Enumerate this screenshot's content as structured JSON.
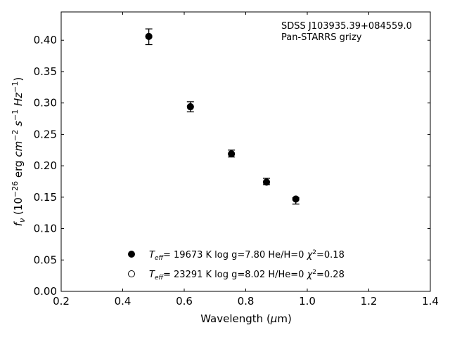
{
  "chart_data": {
    "type": "scatter",
    "xlabel": "Wavelength (μm)",
    "ylabel": "fν (10⁻²⁶ erg cm⁻² s⁻¹ Hz⁻¹)",
    "xlim": [
      0.2,
      1.4
    ],
    "ylim": [
      0.0,
      0.445
    ],
    "xticks": [
      "0.2",
      "0.4",
      "0.6",
      "0.8",
      "1.0",
      "1.2",
      "1.4"
    ],
    "yticks": [
      "0.00",
      "0.05",
      "0.10",
      "0.15",
      "0.20",
      "0.25",
      "0.30",
      "0.35",
      "0.40"
    ],
    "grid": false,
    "annotation": [
      "SDSS J103935.39+084559.0",
      "Pan-STARRS grizy"
    ],
    "series": [
      {
        "name": "Teff= 19673 K  log g=7.80  He/H=0  χ²=0.18",
        "marker": "filled-circle",
        "x": [
          0.4849,
          0.6201,
          0.7535,
          0.8674,
          0.9628
        ],
        "y": [
          0.406,
          0.294,
          0.219,
          0.174,
          0.147
        ],
        "yerr_low": [
          0.013,
          0.008,
          0.005,
          0.004,
          0.008
        ],
        "yerr_high": [
          0.012,
          0.008,
          0.006,
          0.006,
          0.002
        ]
      },
      {
        "name": "Teff= 23291 K  log g=8.02  H/He=0  χ²=0.28",
        "marker": "open-circle",
        "x": [
          0.4849,
          0.6201,
          0.7535,
          0.8674,
          0.9628
        ],
        "y": [
          0.406,
          0.294,
          0.219,
          0.174,
          0.147
        ]
      }
    ],
    "legend": {
      "placement": "lower-center",
      "entries": [
        {
          "t": "T",
          "sub": "eff",
          "rest": "= 19673 K  log g=7.80  He/H=0  ",
          "chi": "χ",
          "sup": "2",
          "tail": "=0.18"
        },
        {
          "t": "T",
          "sub": "eff",
          "rest": "= 23291 K  log g=8.02  H/He=0  ",
          "chi": "χ",
          "sup": "2",
          "tail": "=0.28"
        }
      ]
    }
  }
}
